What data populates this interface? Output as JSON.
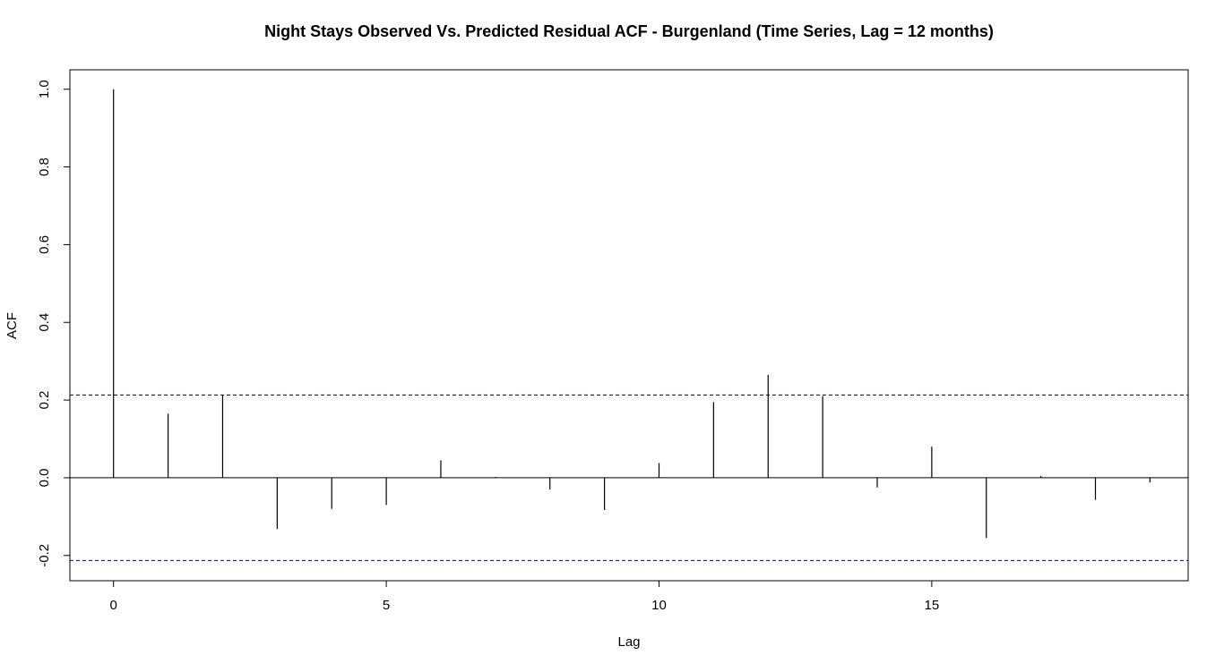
{
  "chart_data": {
    "type": "bar",
    "title": "Night Stays Observed Vs. Predicted Residual ACF - Burgenland (Time Series, Lag = 12 months)",
    "xlabel": "Lag",
    "ylabel": "ACF",
    "lags": [
      0,
      1,
      2,
      3,
      4,
      5,
      6,
      7,
      8,
      9,
      10,
      11,
      12,
      13,
      14,
      15,
      16,
      17,
      18,
      19
    ],
    "acf": [
      1.0,
      0.165,
      0.213,
      -0.132,
      -0.08,
      -0.07,
      0.045,
      0.002,
      -0.03,
      -0.083,
      0.038,
      0.195,
      0.265,
      0.21,
      -0.025,
      0.08,
      -0.155,
      0.005,
      -0.057,
      -0.012
    ],
    "confidence_bound": 0.213,
    "xlim": [
      -0.8,
      19.7
    ],
    "ylim": [
      -0.265,
      1.05
    ],
    "xticks": [
      0,
      5,
      10,
      15
    ],
    "yticks": [
      -0.2,
      0.0,
      0.2,
      0.4,
      0.6,
      0.8,
      1.0
    ],
    "ytick_labels": [
      "-0.2",
      "0.0",
      "0.2",
      "0.4",
      "0.6",
      "0.8",
      "1.0"
    ],
    "zero_line": true,
    "grid": false,
    "colors": {
      "bars": "#000000",
      "confidence_lines": "#00008B",
      "zero_line": "#000000",
      "frame": "#000000"
    }
  }
}
